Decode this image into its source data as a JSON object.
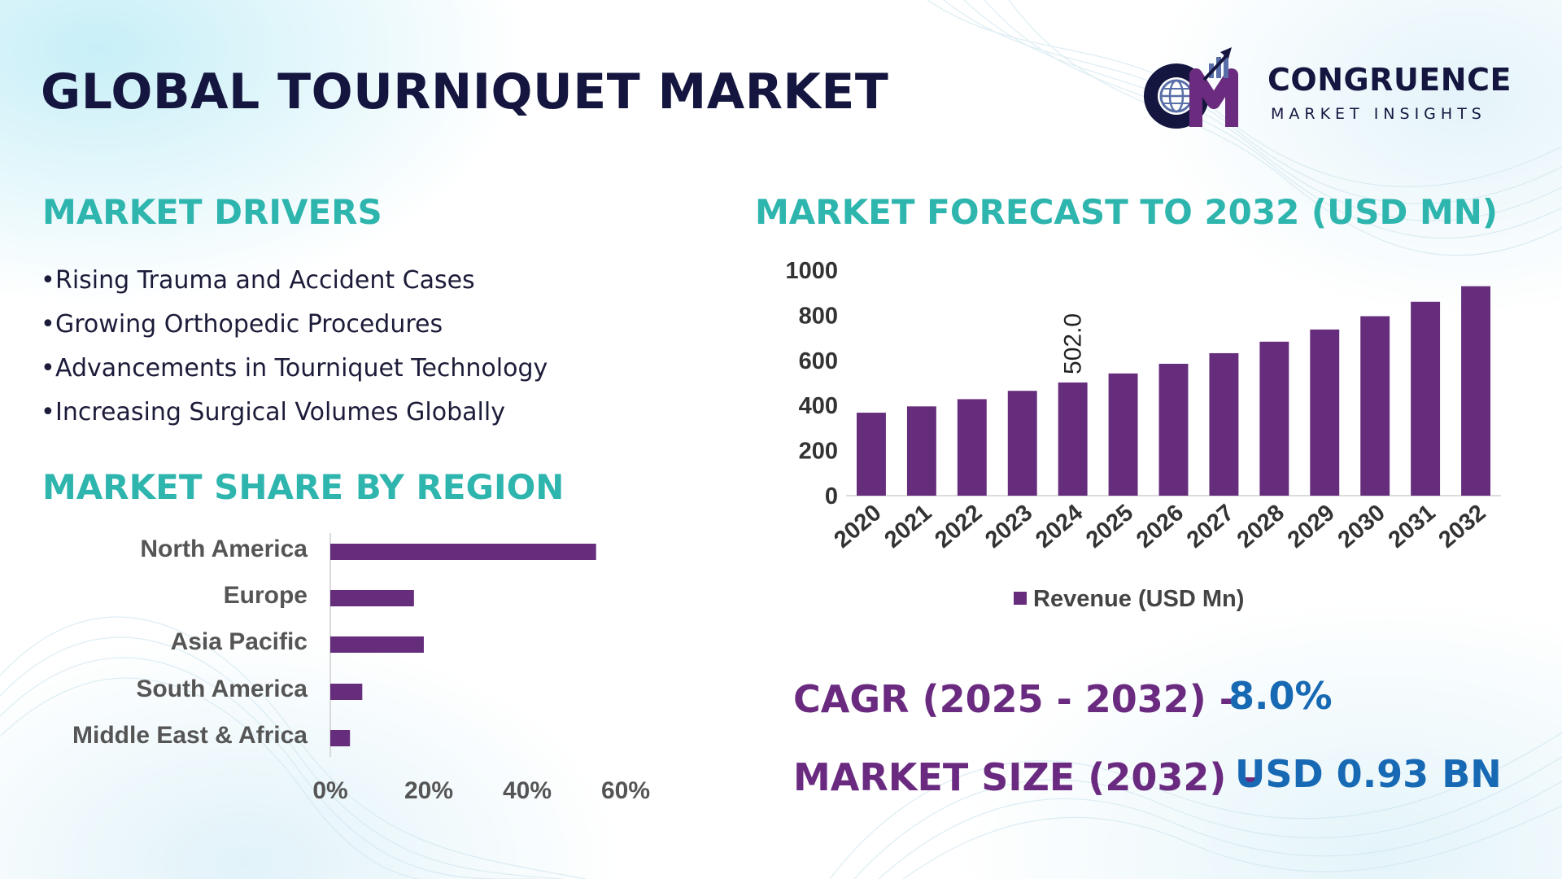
{
  "title": "GLOBAL TOURNIQUET MARKET",
  "brand": {
    "name": "CONGRUENCE",
    "tagline": "MARKET INSIGHTS",
    "colors": {
      "navy": "#14163f",
      "purple": "#6b2c80",
      "globe": "#5a6fa8"
    }
  },
  "drivers": {
    "title": "MARKET DRIVERS",
    "items": [
      "Rising Trauma and Accident Cases",
      "Growing Orthopedic Procedures",
      "Advancements in Tourniquet Technology",
      "Increasing Surgical Volumes Globally"
    ]
  },
  "region": {
    "title": "MARKET SHARE BY REGION"
  },
  "forecast": {
    "title": "MARKET FORECAST TO 2032 (USD MN)"
  },
  "stats": {
    "cagr_label": "CAGR (2025 - 2032) -",
    "cagr_value": "8.0%",
    "size_label": "MARKET SIZE (2032) –",
    "size_value": "USD 0.93 BN"
  },
  "colors": {
    "bar": "#652d7c",
    "accent_teal": "#2eb5ae",
    "stat_purple": "#6a2a80",
    "stat_blue": "#1769b3"
  },
  "chart_data": [
    {
      "type": "bar",
      "orientation": "horizontal",
      "title": "MARKET SHARE BY REGION",
      "categories": [
        "North America",
        "Europe",
        "Asia Pacific",
        "South America",
        "Middle East & Africa"
      ],
      "values": [
        54,
        17,
        19,
        6.5,
        4
      ],
      "unit": "%",
      "xlim": [
        0,
        60
      ],
      "xticks": [
        "0%",
        "20%",
        "40%",
        "60%"
      ],
      "xtick_values": [
        0,
        20,
        40,
        60
      ]
    },
    {
      "type": "bar",
      "title": "MARKET FORECAST TO 2032 (USD MN)",
      "categories": [
        "2020",
        "2021",
        "2022",
        "2023",
        "2024",
        "2025",
        "2026",
        "2027",
        "2028",
        "2029",
        "2030",
        "2031",
        "2032"
      ],
      "series": [
        {
          "name": "Revenue (USD Mn)",
          "values": [
            368,
            396,
            428,
            465,
            502,
            542,
            585,
            632,
            683,
            737,
            796,
            860,
            929
          ]
        }
      ],
      "data_labels": [
        {
          "category": "2024",
          "text": "502.0"
        }
      ],
      "ylim": [
        0,
        1000
      ],
      "yticks": [
        0,
        200,
        400,
        600,
        800,
        1000
      ],
      "legend": "bottom",
      "grid": false
    }
  ]
}
